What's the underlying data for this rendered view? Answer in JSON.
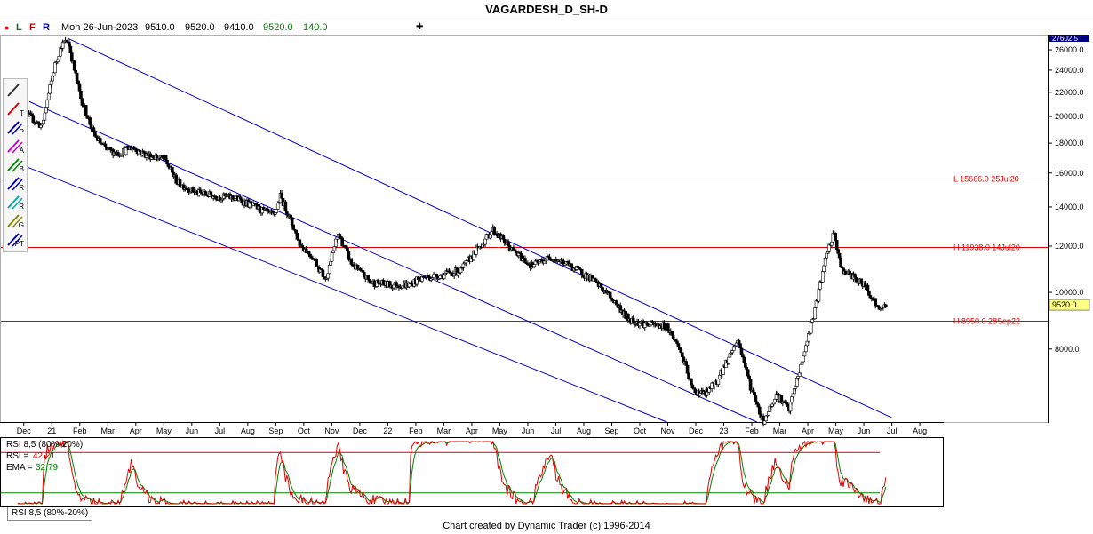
{
  "window": {
    "title": "VAGARDESH_D_SH-D"
  },
  "infobar": {
    "dot_label": "●",
    "l_label": "L",
    "f_label": "F",
    "r_label": "R",
    "date": "Mon 26-Jun-2023",
    "open": "9510.0",
    "high": "9520.0",
    "low": "9410.0",
    "close": "9520.0",
    "change": "140.0",
    "plus": "✚"
  },
  "toolbar": {
    "items": [
      {
        "icon": "select-x-icon",
        "label": ""
      },
      {
        "icon": "trendline-icon",
        "label": "T"
      },
      {
        "icon": "parallel-channel-icon",
        "label": "P"
      },
      {
        "icon": "fib-ratio-icon",
        "label": "A"
      },
      {
        "icon": "fib-bars-icon",
        "label": "B"
      },
      {
        "icon": "retracement-icon",
        "label": "R"
      },
      {
        "icon": "ratio-projection-icon",
        "label": "R"
      },
      {
        "icon": "gann-fan-icon",
        "label": "G"
      },
      {
        "icon": "pattern-tool-icon",
        "label": "PT"
      }
    ]
  },
  "colors": {
    "up": "#ffffff",
    "down": "#000000",
    "channel": "#0000c8",
    "hline": "#e00000",
    "rsi": "#e00000",
    "ema": "#008000"
  },
  "chart_data": [
    {
      "type": "candlestick",
      "title": "VAGARDESH_D_SH-D",
      "ylim": [
        6000,
        27600
      ],
      "y_ticks": [
        "8000.0",
        "10000.0",
        "12000.0",
        "14000.0",
        "16000.0",
        "18000.0",
        "20000.0",
        "22000.0",
        "24000.0",
        "26000.0"
      ],
      "y_top_label": "27602.5",
      "last_price_label": "9520.0",
      "last_price": 9520,
      "x_ticks": [
        "Dec",
        "21",
        "Feb",
        "Mar",
        "Apr",
        "May",
        "Jun",
        "Jul",
        "Aug",
        "Sep",
        "Oct",
        "Nov",
        "Dec",
        "22",
        "Feb",
        "Mar",
        "Apr",
        "May",
        "Jun",
        "Jul",
        "Aug",
        "Sep",
        "Oct",
        "Nov",
        "Dec",
        "23",
        "Feb",
        "Mar",
        "Apr",
        "May",
        "Jun",
        "Jul",
        "Aug"
      ],
      "horizontal_lines": [
        {
          "label": "L 15666.0 25Jul20",
          "value": 15666
        },
        {
          "label": "H 11938.0 14Jul20",
          "value": 11938
        },
        {
          "label": "H 8950.0 28Sep22",
          "value": 8950
        }
      ],
      "price_path": [
        [
          "2020-11-23",
          21000
        ],
        [
          "2020-12-07",
          20000
        ],
        [
          "2020-12-21",
          19200
        ],
        [
          "2021-01-04",
          24500
        ],
        [
          "2021-01-11",
          26500
        ],
        [
          "2021-01-18",
          27000
        ],
        [
          "2021-01-25",
          24000
        ],
        [
          "2021-02-01",
          21500
        ],
        [
          "2021-02-15",
          18600
        ],
        [
          "2021-03-01",
          17500
        ],
        [
          "2021-03-15",
          17300
        ],
        [
          "2021-03-29",
          17700
        ],
        [
          "2021-04-12",
          17200
        ],
        [
          "2021-05-03",
          16900
        ],
        [
          "2021-05-17",
          15400
        ],
        [
          "2021-06-07",
          14800
        ],
        [
          "2021-06-28",
          14600
        ],
        [
          "2021-07-19",
          14500
        ],
        [
          "2021-08-09",
          14000
        ],
        [
          "2021-08-30",
          13500
        ],
        [
          "2021-09-06",
          14600
        ],
        [
          "2021-09-27",
          12100
        ],
        [
          "2021-10-11",
          11500
        ],
        [
          "2021-10-25",
          10500
        ],
        [
          "2021-11-08",
          12600
        ],
        [
          "2021-11-22",
          11200
        ],
        [
          "2021-12-13",
          10400
        ],
        [
          "2022-01-03",
          10300
        ],
        [
          "2022-01-24",
          10300
        ],
        [
          "2022-02-07",
          10600
        ],
        [
          "2022-02-28",
          10700
        ],
        [
          "2022-03-21",
          10900
        ],
        [
          "2022-04-11",
          12000
        ],
        [
          "2022-04-25",
          12800
        ],
        [
          "2022-05-16",
          11800
        ],
        [
          "2022-06-06",
          11100
        ],
        [
          "2022-06-27",
          11500
        ],
        [
          "2022-07-18",
          11100
        ],
        [
          "2022-08-08",
          10600
        ],
        [
          "2022-08-29",
          9900
        ],
        [
          "2022-09-19",
          9000
        ],
        [
          "2022-10-10",
          8800
        ],
        [
          "2022-10-31",
          8750
        ],
        [
          "2022-11-14",
          8000
        ],
        [
          "2022-11-28",
          6800
        ],
        [
          "2022-12-12",
          6700
        ],
        [
          "2022-12-26",
          7100
        ],
        [
          "2023-01-16",
          8300
        ],
        [
          "2023-01-30",
          6900
        ],
        [
          "2023-02-13",
          6000
        ],
        [
          "2023-02-27",
          6700
        ],
        [
          "2023-03-13",
          6300
        ],
        [
          "2023-03-27",
          7600
        ],
        [
          "2023-04-10",
          9300
        ],
        [
          "2023-04-24",
          11800
        ],
        [
          "2023-05-01",
          12600
        ],
        [
          "2023-05-08",
          11000
        ],
        [
          "2023-05-22",
          10600
        ],
        [
          "2023-06-05",
          10200
        ],
        [
          "2023-06-19",
          9300
        ],
        [
          "2023-06-26",
          9520
        ]
      ]
    },
    {
      "type": "line",
      "title": "RSI 8,5 (80%-20%)",
      "tab_label": "RSI 8,5 (80%-20%)",
      "levels": [
        80,
        20
      ],
      "ylim": [
        0,
        100
      ],
      "series": [
        {
          "name": "RSI",
          "label": "RSI",
          "value": "42.21"
        },
        {
          "name": "EMA",
          "label": "EMA",
          "value": "32.79"
        }
      ]
    }
  ],
  "footer": {
    "credit": "Chart created by Dynamic Trader  (c) 1996-2014"
  }
}
